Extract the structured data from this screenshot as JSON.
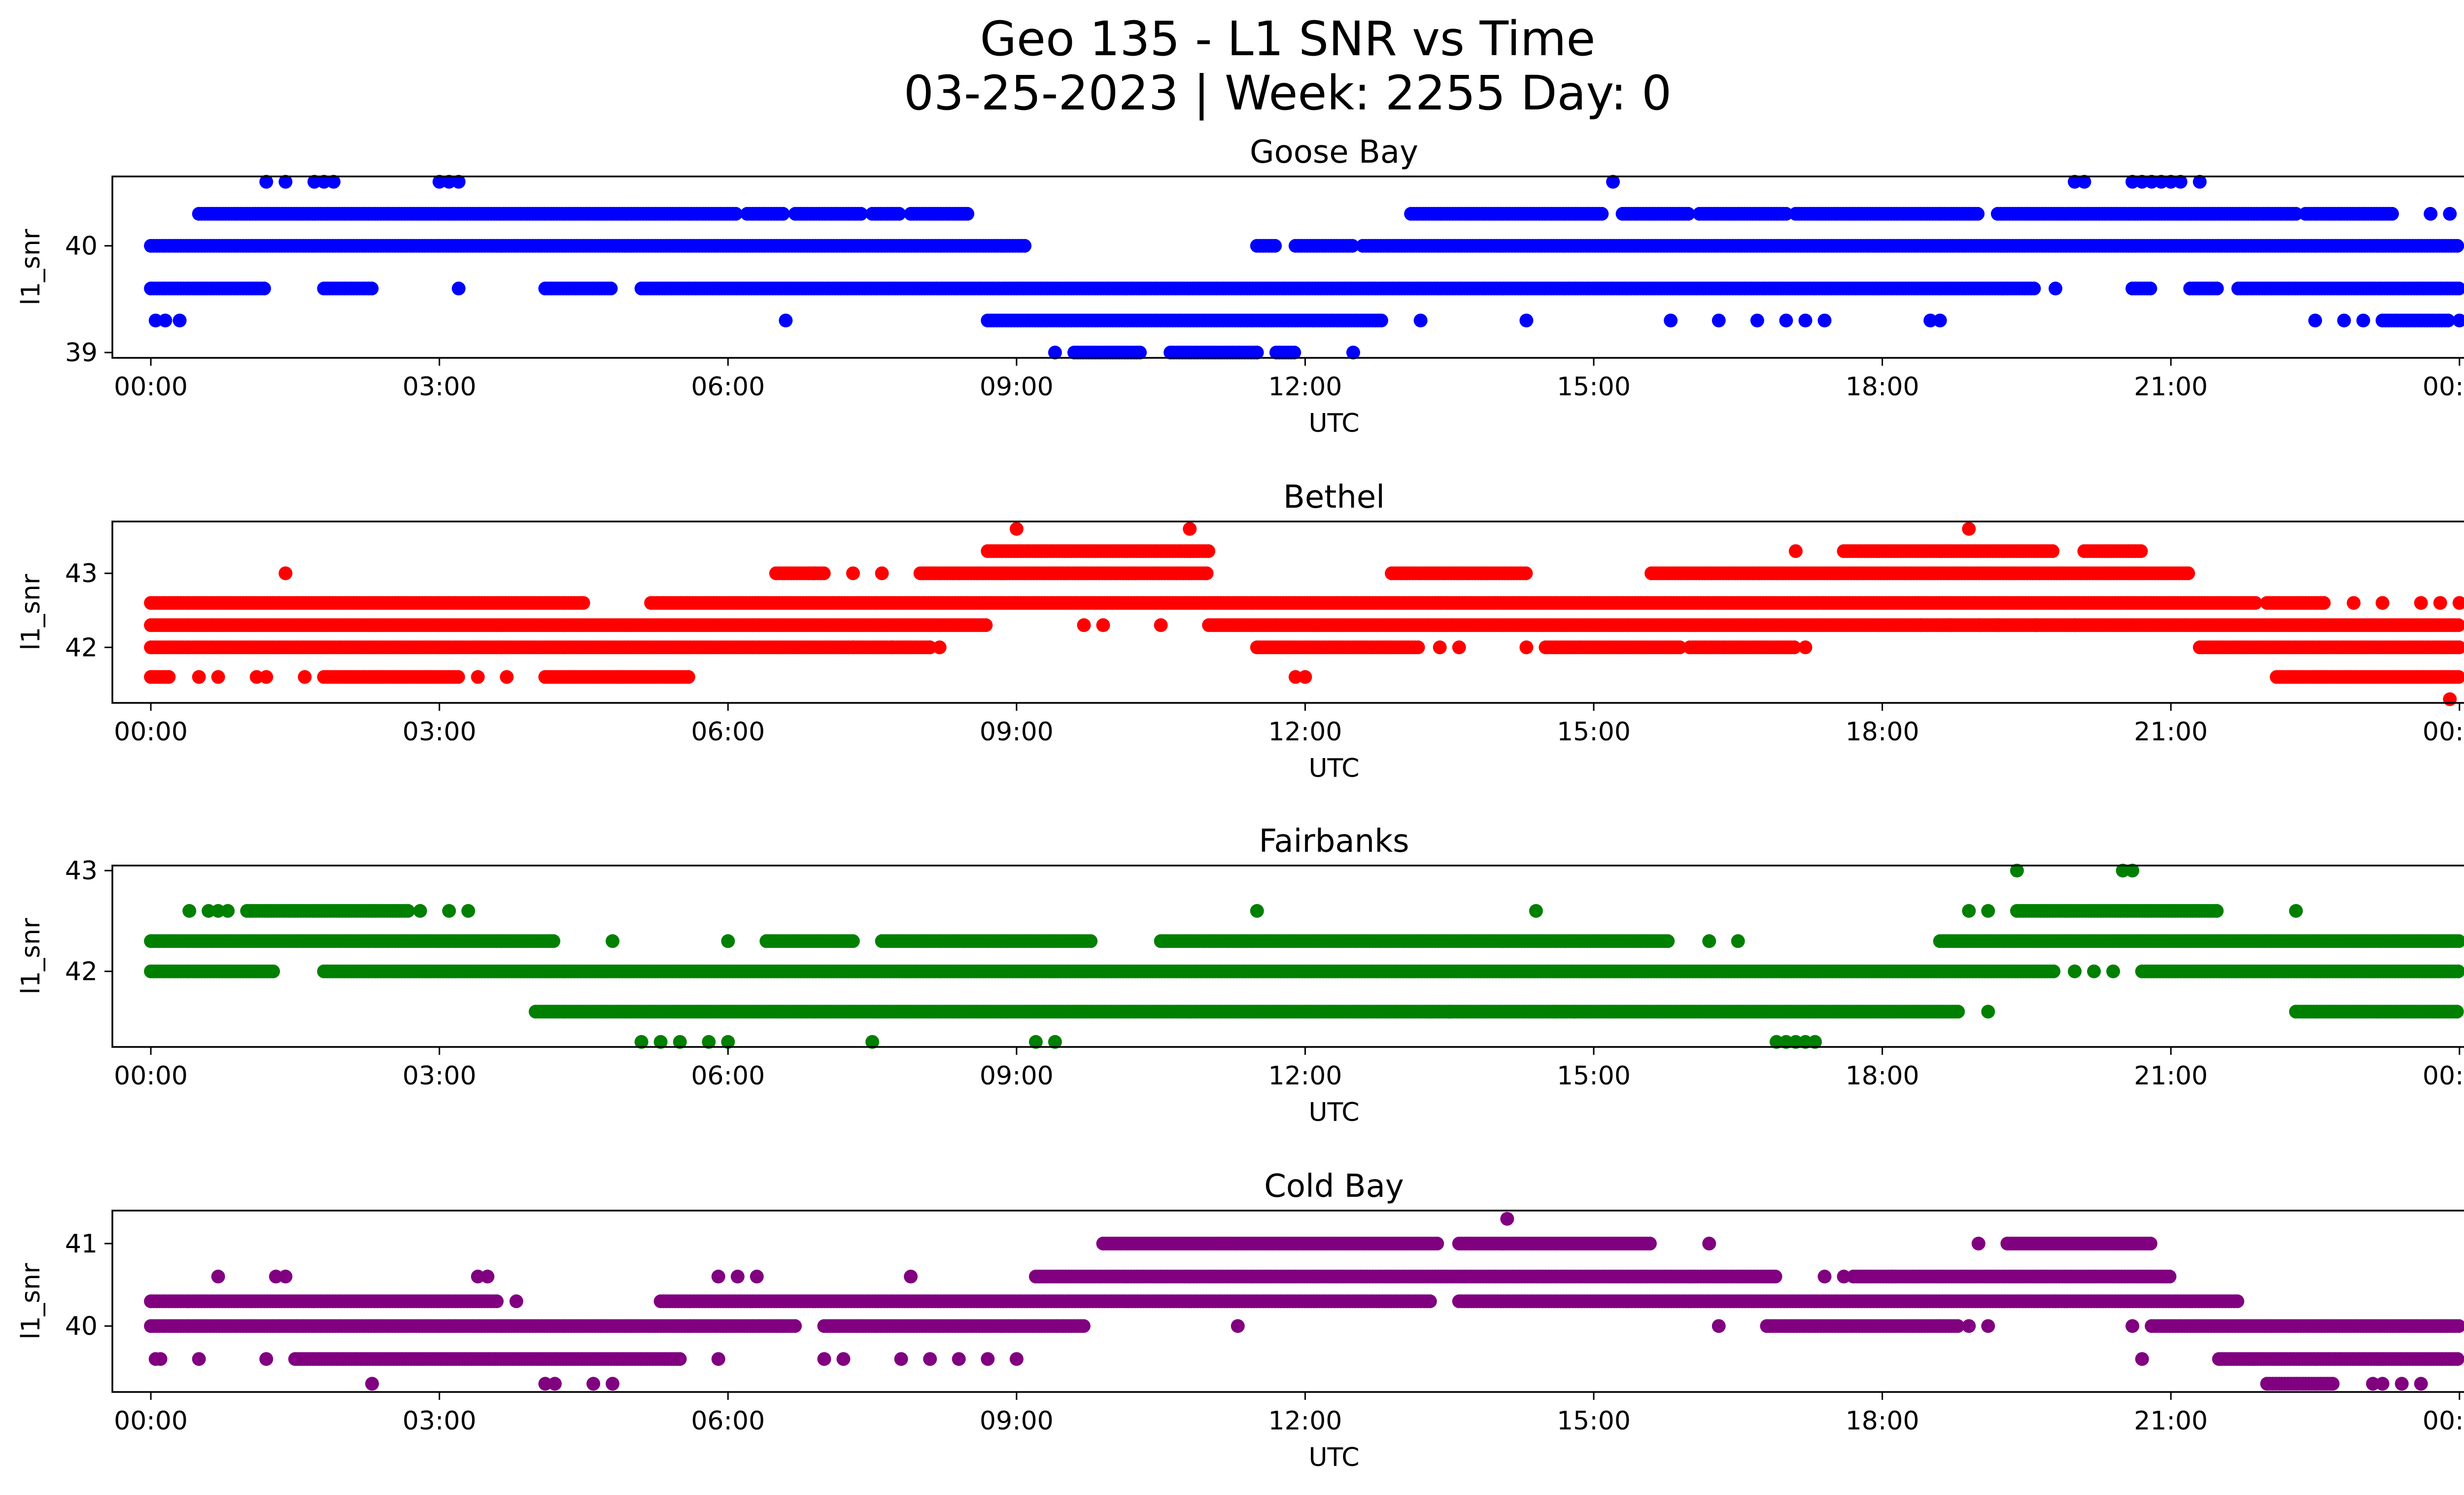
{
  "figure": {
    "title_line1": "Geo 135 - L1 SNR vs Time",
    "title_line2": "03-25-2023 | Week: 2255 Day: 0"
  },
  "chart_data": [
    {
      "type": "scatter",
      "title": "Goose Bay",
      "xlabel": "UTC",
      "ylabel": "l1_snr",
      "color": "#0000ff",
      "xlim": [
        -0.4,
        25.0
      ],
      "ylim": [
        38.95,
        40.65
      ],
      "yticks": [
        39,
        40
      ],
      "xtick_labels": [
        "00:00",
        "03:00",
        "06:00",
        "09:00",
        "12:00",
        "15:00",
        "18:00",
        "21:00",
        "00:00"
      ],
      "grid": false,
      "x_unit": "hours UTC",
      "bands": [
        {
          "y": 40.0,
          "segments": [
            [
              0.0,
              9.1
            ],
            [
              11.5,
              11.7
            ],
            [
              11.9,
              12.5
            ],
            [
              12.6,
              24.0
            ]
          ]
        },
        {
          "y": 39.6,
          "segments": [
            [
              0.0,
              1.2
            ],
            [
              1.8,
              2.3
            ],
            [
              4.1,
              4.8
            ],
            [
              5.1,
              19.6
            ],
            [
              20.6,
              20.8
            ],
            [
              21.2,
              21.5
            ],
            [
              21.7,
              24.0
            ]
          ]
        },
        {
          "y": 40.3,
          "segments": [
            [
              0.5,
              6.1
            ],
            [
              6.2,
              6.6
            ],
            [
              6.7,
              7.4
            ],
            [
              7.5,
              7.8
            ],
            [
              7.9,
              8.5
            ],
            [
              13.1,
              15.1
            ],
            [
              15.3,
              16.0
            ],
            [
              16.1,
              17.0
            ],
            [
              17.1,
              19.0
            ],
            [
              19.2,
              22.3
            ],
            [
              22.4,
              23.3
            ]
          ]
        },
        {
          "y": 39.3,
          "segments": [
            [
              8.7,
              12.8
            ],
            [
              23.2,
              23.9
            ]
          ]
        },
        {
          "y": 39.0,
          "segments": [
            [
              9.6,
              10.3
            ],
            [
              10.6,
              11.5
            ],
            [
              11.7,
              11.9
            ]
          ]
        }
      ],
      "points": [
        {
          "x": 0.05,
          "y": 39.3
        },
        {
          "x": 0.15,
          "y": 39.3
        },
        {
          "x": 0.3,
          "y": 39.3
        },
        {
          "x": 3.2,
          "y": 39.6
        },
        {
          "x": 6.6,
          "y": 39.3
        },
        {
          "x": 9.4,
          "y": 39.0
        },
        {
          "x": 12.5,
          "y": 39.0
        },
        {
          "x": 13.2,
          "y": 39.3
        },
        {
          "x": 14.3,
          "y": 39.3
        },
        {
          "x": 15.8,
          "y": 39.3
        },
        {
          "x": 16.3,
          "y": 39.3
        },
        {
          "x": 16.7,
          "y": 39.3
        },
        {
          "x": 17.0,
          "y": 39.3
        },
        {
          "x": 17.2,
          "y": 39.3
        },
        {
          "x": 17.4,
          "y": 39.3
        },
        {
          "x": 18.5,
          "y": 39.3
        },
        {
          "x": 18.6,
          "y": 39.3
        },
        {
          "x": 19.8,
          "y": 39.6
        },
        {
          "x": 22.5,
          "y": 39.3
        },
        {
          "x": 22.8,
          "y": 39.3
        },
        {
          "x": 23.0,
          "y": 39.3
        },
        {
          "x": 23.7,
          "y": 40.3
        },
        {
          "x": 23.9,
          "y": 40.3
        },
        {
          "x": 24.0,
          "y": 39.3
        },
        {
          "x": 1.2,
          "y": 40.6
        },
        {
          "x": 1.4,
          "y": 40.6
        },
        {
          "x": 1.7,
          "y": 40.6
        },
        {
          "x": 1.8,
          "y": 40.6
        },
        {
          "x": 1.9,
          "y": 40.6
        },
        {
          "x": 3.0,
          "y": 40.6
        },
        {
          "x": 3.1,
          "y": 40.6
        },
        {
          "x": 3.2,
          "y": 40.6
        },
        {
          "x": 15.2,
          "y": 40.6
        },
        {
          "x": 20.0,
          "y": 40.6
        },
        {
          "x": 20.1,
          "y": 40.6
        },
        {
          "x": 20.6,
          "y": 40.6
        },
        {
          "x": 20.7,
          "y": 40.6
        },
        {
          "x": 20.8,
          "y": 40.6
        },
        {
          "x": 20.9,
          "y": 40.6
        },
        {
          "x": 21.0,
          "y": 40.6
        },
        {
          "x": 21.1,
          "y": 40.6
        },
        {
          "x": 21.3,
          "y": 40.6
        }
      ]
    },
    {
      "type": "scatter",
      "title": "Bethel",
      "xlabel": "UTC",
      "ylabel": "l1_snr",
      "color": "#ff0000",
      "xlim": [
        -0.4,
        25.0
      ],
      "ylim": [
        41.25,
        43.7
      ],
      "yticks": [
        42,
        43
      ],
      "xtick_labels": [
        "00:00",
        "03:00",
        "06:00",
        "09:00",
        "12:00",
        "15:00",
        "18:00",
        "21:00",
        "00:00"
      ],
      "grid": false,
      "x_unit": "hours UTC",
      "bands": [
        {
          "y": 42.0,
          "segments": [
            [
              0.0,
              8.1
            ],
            [
              11.5,
              13.2
            ],
            [
              14.5,
              15.9
            ],
            [
              16.0,
              17.1
            ],
            [
              21.3,
              24.0
            ]
          ]
        },
        {
          "y": 42.3,
          "segments": [
            [
              0.0,
              8.7
            ],
            [
              11.0,
              24.0
            ]
          ]
        },
        {
          "y": 42.6,
          "segments": [
            [
              0.0,
              4.5
            ],
            [
              5.2,
              21.9
            ],
            [
              22.0,
              22.6
            ]
          ]
        },
        {
          "y": 41.6,
          "segments": [
            [
              0.0,
              0.2
            ],
            [
              1.8,
              3.2
            ],
            [
              4.1,
              5.6
            ],
            [
              22.1,
              24.0
            ]
          ]
        },
        {
          "y": 43.0,
          "segments": [
            [
              6.5,
              7.0
            ],
            [
              8.0,
              11.0
            ],
            [
              12.9,
              14.3
            ],
            [
              15.6,
              21.2
            ]
          ]
        },
        {
          "y": 43.3,
          "segments": [
            [
              8.7,
              11.0
            ],
            [
              17.6,
              19.8
            ],
            [
              20.1,
              20.7
            ]
          ]
        }
      ],
      "points": [
        {
          "x": 0.5,
          "y": 41.6
        },
        {
          "x": 0.7,
          "y": 41.6
        },
        {
          "x": 1.1,
          "y": 41.6
        },
        {
          "x": 1.2,
          "y": 41.6
        },
        {
          "x": 1.6,
          "y": 41.6
        },
        {
          "x": 3.4,
          "y": 41.6
        },
        {
          "x": 3.7,
          "y": 41.6
        },
        {
          "x": 1.4,
          "y": 43.0
        },
        {
          "x": 6.9,
          "y": 43.0
        },
        {
          "x": 7.3,
          "y": 43.0
        },
        {
          "x": 7.6,
          "y": 43.0
        },
        {
          "x": 9.0,
          "y": 43.6
        },
        {
          "x": 10.8,
          "y": 43.6
        },
        {
          "x": 18.9,
          "y": 43.6
        },
        {
          "x": 9.7,
          "y": 42.3
        },
        {
          "x": 9.9,
          "y": 42.3
        },
        {
          "x": 10.5,
          "y": 42.3
        },
        {
          "x": 8.2,
          "y": 42.0
        },
        {
          "x": 8.1,
          "y": 42.0
        },
        {
          "x": 7.7,
          "y": 42.0
        },
        {
          "x": 7.3,
          "y": 42.0
        },
        {
          "x": 11.9,
          "y": 41.6
        },
        {
          "x": 12.0,
          "y": 41.6
        },
        {
          "x": 17.1,
          "y": 43.3
        },
        {
          "x": 17.2,
          "y": 42.0
        },
        {
          "x": 18.4,
          "y": 42.3
        },
        {
          "x": 18.7,
          "y": 42.3
        },
        {
          "x": 19.0,
          "y": 42.3
        },
        {
          "x": 19.2,
          "y": 42.3
        },
        {
          "x": 19.6,
          "y": 42.3
        },
        {
          "x": 20.0,
          "y": 42.3
        },
        {
          "x": 13.4,
          "y": 42.0
        },
        {
          "x": 13.6,
          "y": 42.0
        },
        {
          "x": 14.3,
          "y": 42.0
        },
        {
          "x": 22.9,
          "y": 42.6
        },
        {
          "x": 23.2,
          "y": 42.6
        },
        {
          "x": 23.6,
          "y": 42.6
        },
        {
          "x": 23.8,
          "y": 42.6
        },
        {
          "x": 24.0,
          "y": 42.6
        },
        {
          "x": 23.9,
          "y": 41.3
        }
      ]
    },
    {
      "type": "scatter",
      "title": "Fairbanks",
      "xlabel": "UTC",
      "ylabel": "l1_snr",
      "color": "#008000",
      "xlim": [
        -0.4,
        25.0
      ],
      "ylim": [
        41.25,
        43.05
      ],
      "yticks": [
        42,
        43
      ],
      "xtick_labels": [
        "00:00",
        "03:00",
        "06:00",
        "09:00",
        "12:00",
        "15:00",
        "18:00",
        "21:00",
        "00:00"
      ],
      "grid": false,
      "x_unit": "hours UTC",
      "bands": [
        {
          "y": 42.0,
          "segments": [
            [
              0.0,
              1.3
            ],
            [
              1.8,
              19.8
            ],
            [
              20.7,
              24.0
            ]
          ]
        },
        {
          "y": 42.3,
          "segments": [
            [
              0.0,
              4.2
            ],
            [
              6.4,
              7.3
            ],
            [
              7.6,
              9.8
            ],
            [
              10.5,
              15.8
            ],
            [
              18.6,
              24.0
            ]
          ]
        },
        {
          "y": 41.6,
          "segments": [
            [
              4.0,
              18.8
            ],
            [
              22.3,
              24.0
            ]
          ]
        },
        {
          "y": 42.6,
          "segments": [
            [
              1.0,
              2.7
            ],
            [
              19.4,
              21.5
            ]
          ]
        }
      ],
      "points": [
        {
          "x": 0.4,
          "y": 42.6
        },
        {
          "x": 0.6,
          "y": 42.6
        },
        {
          "x": 0.7,
          "y": 42.6
        },
        {
          "x": 0.8,
          "y": 42.6
        },
        {
          "x": 2.8,
          "y": 42.6
        },
        {
          "x": 3.1,
          "y": 42.6
        },
        {
          "x": 3.3,
          "y": 42.6
        },
        {
          "x": 4.8,
          "y": 42.3
        },
        {
          "x": 6.0,
          "y": 42.3
        },
        {
          "x": 5.1,
          "y": 41.3
        },
        {
          "x": 5.3,
          "y": 41.3
        },
        {
          "x": 5.5,
          "y": 41.3
        },
        {
          "x": 5.8,
          "y": 41.3
        },
        {
          "x": 6.0,
          "y": 41.3
        },
        {
          "x": 7.5,
          "y": 41.3
        },
        {
          "x": 9.2,
          "y": 41.3
        },
        {
          "x": 9.4,
          "y": 41.3
        },
        {
          "x": 11.5,
          "y": 42.6
        },
        {
          "x": 14.4,
          "y": 42.6
        },
        {
          "x": 16.2,
          "y": 42.3
        },
        {
          "x": 16.5,
          "y": 42.3
        },
        {
          "x": 16.9,
          "y": 41.3
        },
        {
          "x": 17.0,
          "y": 41.3
        },
        {
          "x": 17.1,
          "y": 41.3
        },
        {
          "x": 17.2,
          "y": 41.3
        },
        {
          "x": 17.3,
          "y": 41.3
        },
        {
          "x": 19.1,
          "y": 41.6
        },
        {
          "x": 18.9,
          "y": 42.6
        },
        {
          "x": 19.1,
          "y": 42.6
        },
        {
          "x": 19.4,
          "y": 43.0
        },
        {
          "x": 20.5,
          "y": 43.0
        },
        {
          "x": 20.6,
          "y": 43.0
        },
        {
          "x": 22.3,
          "y": 42.6
        },
        {
          "x": 20.0,
          "y": 42.0
        },
        {
          "x": 20.2,
          "y": 42.0
        },
        {
          "x": 20.4,
          "y": 42.0
        },
        {
          "x": 13.3,
          "y": 41.6
        },
        {
          "x": 13.5,
          "y": 41.6
        },
        {
          "x": 14.6,
          "y": 41.6
        },
        {
          "x": 14.8,
          "y": 41.6
        }
      ]
    },
    {
      "type": "scatter",
      "title": "Cold Bay",
      "xlabel": "UTC",
      "ylabel": "l1_snr",
      "color": "#800080",
      "xlim": [
        -0.4,
        25.0
      ],
      "ylim": [
        39.2,
        41.4
      ],
      "yticks": [
        40,
        41
      ],
      "xtick_labels": [
        "00:00",
        "03:00",
        "06:00",
        "09:00",
        "12:00",
        "15:00",
        "18:00",
        "21:00",
        "00:00"
      ],
      "grid": false,
      "x_unit": "hours UTC",
      "bands": [
        {
          "y": 40.0,
          "segments": [
            [
              0.0,
              6.7
            ],
            [
              7.0,
              9.7
            ],
            [
              16.8,
              18.8
            ],
            [
              20.8,
              24.0
            ]
          ]
        },
        {
          "y": 40.3,
          "segments": [
            [
              0.0,
              3.6
            ],
            [
              5.3,
              13.3
            ],
            [
              13.6,
              21.7
            ]
          ]
        },
        {
          "y": 39.6,
          "segments": [
            [
              1.5,
              5.5
            ],
            [
              21.5,
              24.0
            ]
          ]
        },
        {
          "y": 40.6,
          "segments": [
            [
              9.2,
              16.9
            ],
            [
              17.7,
              21.0
            ]
          ]
        },
        {
          "y": 41.0,
          "segments": [
            [
              9.9,
              13.4
            ],
            [
              13.6,
              15.6
            ],
            [
              19.3,
              20.8
            ]
          ]
        },
        {
          "y": 39.3,
          "segments": [
            [
              22.0,
              22.7
            ]
          ]
        }
      ],
      "points": [
        {
          "x": 0.05,
          "y": 39.6
        },
        {
          "x": 0.1,
          "y": 39.6
        },
        {
          "x": 0.5,
          "y": 39.6
        },
        {
          "x": 1.2,
          "y": 39.6
        },
        {
          "x": 0.7,
          "y": 40.6
        },
        {
          "x": 1.3,
          "y": 40.6
        },
        {
          "x": 1.4,
          "y": 40.6
        },
        {
          "x": 3.4,
          "y": 40.6
        },
        {
          "x": 3.5,
          "y": 40.6
        },
        {
          "x": 3.8,
          "y": 40.3
        },
        {
          "x": 2.3,
          "y": 39.3
        },
        {
          "x": 4.1,
          "y": 39.3
        },
        {
          "x": 4.2,
          "y": 39.3
        },
        {
          "x": 4.6,
          "y": 39.3
        },
        {
          "x": 4.8,
          "y": 39.3
        },
        {
          "x": 5.9,
          "y": 39.6
        },
        {
          "x": 7.0,
          "y": 39.6
        },
        {
          "x": 7.2,
          "y": 39.6
        },
        {
          "x": 7.8,
          "y": 39.6
        },
        {
          "x": 8.1,
          "y": 39.6
        },
        {
          "x": 8.4,
          "y": 39.6
        },
        {
          "x": 8.7,
          "y": 39.6
        },
        {
          "x": 9.0,
          "y": 39.6
        },
        {
          "x": 5.9,
          "y": 40.6
        },
        {
          "x": 6.1,
          "y": 40.6
        },
        {
          "x": 6.3,
          "y": 40.6
        },
        {
          "x": 7.9,
          "y": 40.6
        },
        {
          "x": 11.3,
          "y": 40.0
        },
        {
          "x": 14.1,
          "y": 41.3
        },
        {
          "x": 16.2,
          "y": 41.0
        },
        {
          "x": 16.3,
          "y": 40.0
        },
        {
          "x": 19.0,
          "y": 41.0
        },
        {
          "x": 18.9,
          "y": 40.0
        },
        {
          "x": 19.1,
          "y": 40.0
        },
        {
          "x": 19.8,
          "y": 40.3
        },
        {
          "x": 20.6,
          "y": 40.0
        },
        {
          "x": 20.7,
          "y": 39.6
        },
        {
          "x": 17.4,
          "y": 40.6
        },
        {
          "x": 17.6,
          "y": 40.6
        },
        {
          "x": 18.1,
          "y": 40.6
        },
        {
          "x": 23.1,
          "y": 39.3
        },
        {
          "x": 23.2,
          "y": 39.3
        },
        {
          "x": 23.4,
          "y": 39.3
        },
        {
          "x": 23.6,
          "y": 39.3
        }
      ]
    }
  ]
}
